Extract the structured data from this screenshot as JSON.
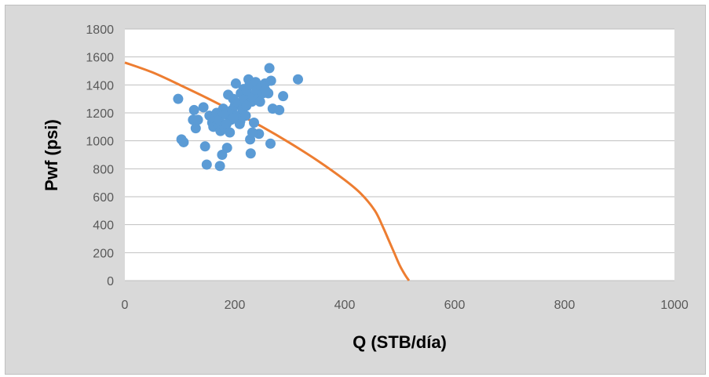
{
  "chart_data": {
    "type": "scatter",
    "title": "",
    "xlabel": "Q (STB/día)",
    "ylabel": "Pwf (psi)",
    "xlim": [
      0,
      1000
    ],
    "ylim": [
      0,
      1800
    ],
    "x_ticks": [
      0,
      200,
      400,
      600,
      800,
      1000
    ],
    "y_ticks": [
      0,
      200,
      400,
      600,
      800,
      1000,
      1200,
      1400,
      1600,
      1800
    ],
    "grid": true,
    "legend": "none",
    "colors": {
      "points": "#5b9bd5",
      "curve": "#ed7d31",
      "plot_background": "#ffffff",
      "frame_background": "#d9d9d9",
      "grid": "#bfbfbf"
    },
    "series": [
      {
        "kind": "scatter",
        "points": [
          [
            97,
            1300
          ],
          [
            103,
            1010
          ],
          [
            107,
            990
          ],
          [
            124,
            1150
          ],
          [
            126,
            1220
          ],
          [
            129,
            1090
          ],
          [
            133,
            1150
          ],
          [
            143,
            1240
          ],
          [
            146,
            960
          ],
          [
            149,
            830
          ],
          [
            154,
            1180
          ],
          [
            159,
            1130
          ],
          [
            161,
            1100
          ],
          [
            164,
            1160
          ],
          [
            167,
            1200
          ],
          [
            169,
            1120
          ],
          [
            172,
            1150
          ],
          [
            174,
            1070
          ],
          [
            176,
            1210
          ],
          [
            177,
            900
          ],
          [
            179,
            1230
          ],
          [
            181,
            1100
          ],
          [
            184,
            1190
          ],
          [
            186,
            950
          ],
          [
            188,
            1330
          ],
          [
            191,
            1060
          ],
          [
            193,
            1150
          ],
          [
            195,
            1220
          ],
          [
            197,
            1300
          ],
          [
            200,
            1250
          ],
          [
            202,
            1410
          ],
          [
            204,
            1180
          ],
          [
            207,
            1270
          ],
          [
            209,
            1120
          ],
          [
            211,
            1340
          ],
          [
            214,
            1230
          ],
          [
            216,
            1370
          ],
          [
            218,
            1300
          ],
          [
            220,
            1180
          ],
          [
            222,
            1360
          ],
          [
            225,
            1440
          ],
          [
            227,
            1400
          ],
          [
            228,
            1010
          ],
          [
            229,
            910
          ],
          [
            231,
            1280
          ],
          [
            233,
            1320
          ],
          [
            235,
            1130
          ],
          [
            238,
            1420
          ],
          [
            240,
            1360
          ],
          [
            242,
            1300
          ],
          [
            244,
            1050
          ],
          [
            246,
            1280
          ],
          [
            248,
            1390
          ],
          [
            251,
            1340
          ],
          [
            255,
            1410
          ],
          [
            261,
            1340
          ],
          [
            263,
            1520
          ],
          [
            265,
            980
          ],
          [
            266,
            1430
          ],
          [
            269,
            1230
          ],
          [
            281,
            1220
          ],
          [
            288,
            1320
          ],
          [
            315,
            1440
          ],
          [
            173,
            820
          ],
          [
            210,
            1140
          ],
          [
            232,
            1060
          ],
          [
            198,
            1160
          ],
          [
            256,
            1360
          ],
          [
            221,
            1250
          ],
          [
            185,
            1120
          ]
        ]
      },
      {
        "kind": "line",
        "points": [
          [
            0,
            1560
          ],
          [
            50,
            1490
          ],
          [
            100,
            1400
          ],
          [
            150,
            1305
          ],
          [
            200,
            1205
          ],
          [
            250,
            1100
          ],
          [
            300,
            985
          ],
          [
            350,
            860
          ],
          [
            400,
            720
          ],
          [
            430,
            620
          ],
          [
            455,
            500
          ],
          [
            470,
            380
          ],
          [
            480,
            290
          ],
          [
            490,
            200
          ],
          [
            500,
            110
          ],
          [
            510,
            40
          ],
          [
            517,
            0
          ]
        ]
      }
    ]
  }
}
